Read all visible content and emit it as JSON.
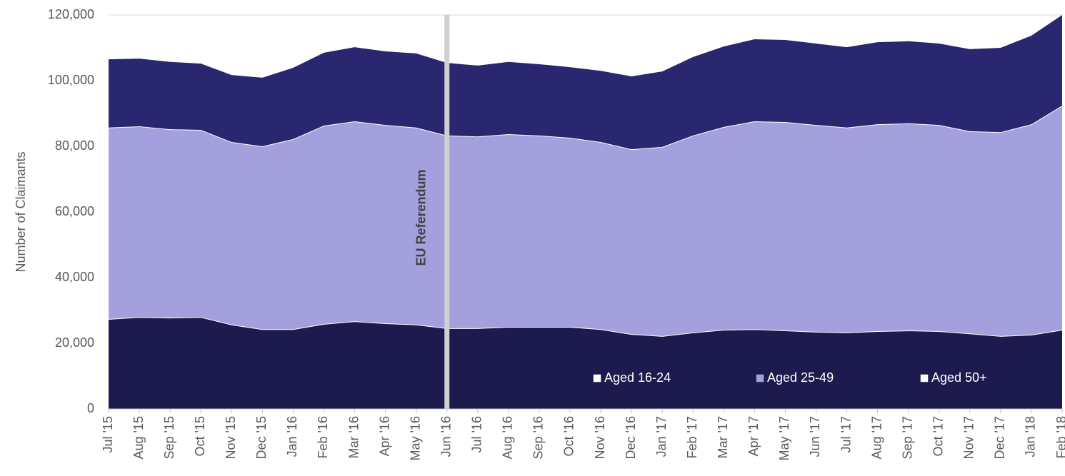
{
  "chart_data": {
    "type": "stacked_area",
    "y_label": "Number of Claimants",
    "categories": [
      "Jul '15",
      "Aug '15",
      "Sep '15",
      "Oct '15",
      "Nov '15",
      "Dec '15",
      "Jan '16",
      "Feb '16",
      "Mar '16",
      "Apr '16",
      "May '16",
      "Jun '16",
      "Jul '16",
      "Aug '16",
      "Sep '16",
      "Oct '16",
      "Nov '16",
      "Dec '16",
      "Jan '17",
      "Feb '17",
      "Mar '17",
      "Apr '17",
      "May '17",
      "Jun '17",
      "Jul '17",
      "Aug '17",
      "Sep '17",
      "Oct '17",
      "Nov '17",
      "Dec '17",
      "Jan '18",
      "Feb '18"
    ],
    "series": [
      {
        "name": "Aged 16-24",
        "color": "#1d1b4d",
        "legend_marker_color": "#ffffff",
        "values": [
          27400,
          28000,
          27800,
          28000,
          25700,
          24300,
          24300,
          25900,
          26700,
          26100,
          25700,
          24600,
          24600,
          25000,
          25000,
          25000,
          24300,
          22800,
          22200,
          23300,
          24100,
          24300,
          23900,
          23500,
          23300,
          23700,
          23900,
          23700,
          23000,
          22200,
          22600,
          24100
        ]
      },
      {
        "name": "Aged 25-49",
        "color": "#a3a0dd",
        "legend_marker_color": "#a3a0dd",
        "values": [
          58300,
          58100,
          57400,
          57000,
          55600,
          55700,
          57900,
          60400,
          60900,
          60400,
          60000,
          58700,
          58400,
          58700,
          58300,
          57600,
          57000,
          56300,
          57600,
          60000,
          61800,
          63300,
          63500,
          63000,
          62400,
          63000,
          63100,
          62800,
          61600,
          62100,
          64100,
          68300
        ]
      },
      {
        "name": "Aged 50+",
        "color": "#28276f",
        "legend_marker_color": "#ffffff",
        "values": [
          20800,
          20600,
          20500,
          20200,
          20400,
          20900,
          21700,
          22200,
          22600,
          22400,
          22600,
          22100,
          21600,
          22000,
          21700,
          21500,
          21700,
          22200,
          23000,
          23900,
          24500,
          25000,
          25000,
          24800,
          24500,
          25000,
          25000,
          24800,
          25000,
          25700,
          27000,
          27600
        ]
      }
    ],
    "ylim": [
      0,
      120000
    ],
    "yticks": [
      0,
      {
        "value": 20000,
        "label": "20,000"
      },
      {
        "value": 40000,
        "label": "40,000"
      },
      {
        "value": 60000,
        "label": "60,000"
      },
      {
        "value": 80000,
        "label": "80,000"
      },
      {
        "value": 100000,
        "label": "100,000"
      },
      {
        "value": 120000,
        "label": "120,000"
      }
    ],
    "grid": true,
    "legend": "lower right",
    "annotations": [
      {
        "text": "EU Referendum",
        "x": "Jun '16",
        "color": "#d0d0d0"
      }
    ]
  }
}
